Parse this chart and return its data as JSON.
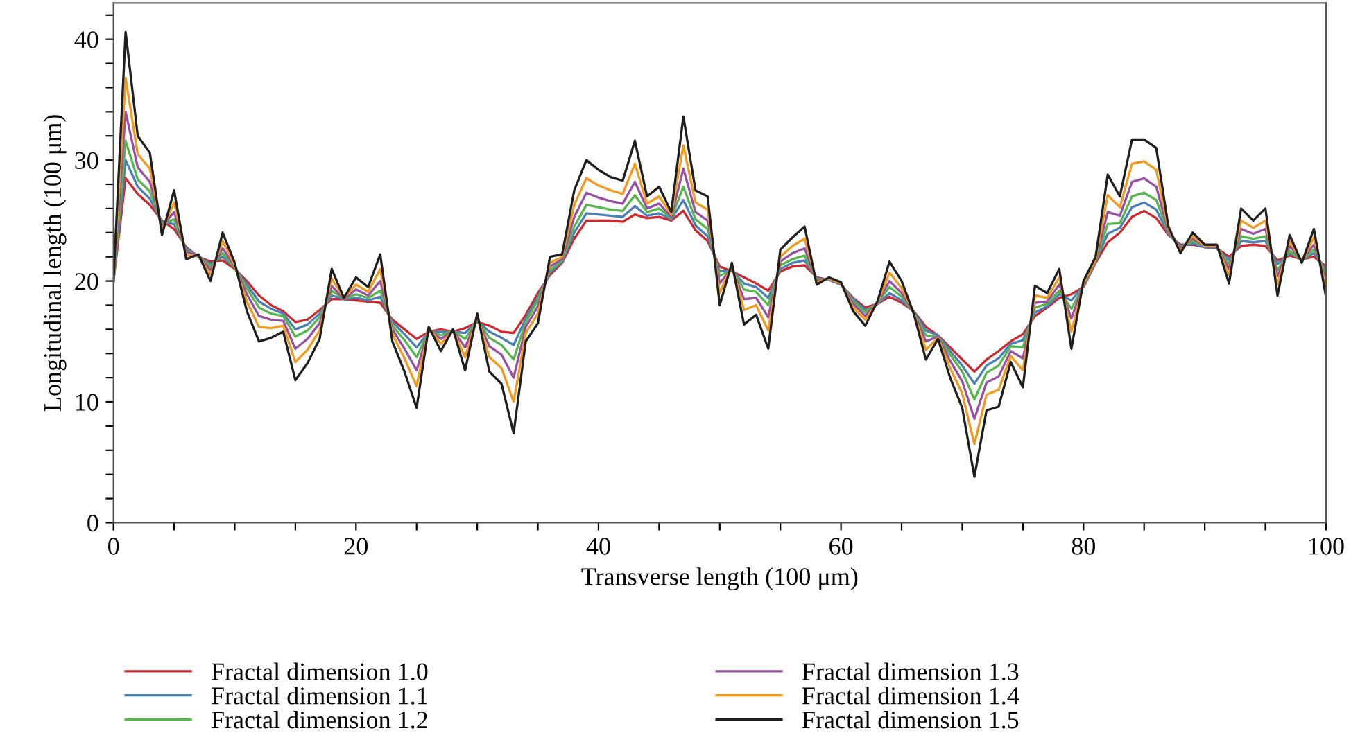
{
  "chart_data": {
    "type": "line",
    "xlabel": "Transverse length (100 μm)",
    "ylabel": "Longitudinal length (100 μm)",
    "x": [
      0,
      1,
      2,
      3,
      4,
      5,
      6,
      7,
      8,
      9,
      10,
      11,
      12,
      13,
      14,
      15,
      16,
      17,
      18,
      19,
      20,
      21,
      22,
      23,
      24,
      25,
      26,
      27,
      28,
      29,
      30,
      31,
      32,
      33,
      34,
      35,
      36,
      37,
      38,
      39,
      40,
      41,
      42,
      43,
      44,
      45,
      46,
      47,
      48,
      49,
      50,
      51,
      52,
      53,
      54,
      55,
      56,
      57,
      58,
      59,
      60,
      61,
      62,
      63,
      64,
      65,
      66,
      67,
      68,
      69,
      70,
      71,
      72,
      73,
      74,
      75,
      76,
      77,
      78,
      79,
      80,
      81,
      82,
      83,
      84,
      85,
      86,
      87,
      88,
      89,
      90,
      91,
      92,
      93,
      94,
      95,
      96,
      97,
      98,
      99,
      100
    ],
    "xlim": [
      0,
      100
    ],
    "ylim": [
      0,
      43
    ],
    "xticks": [
      0,
      {
        "value": 5,
        "label": null
      },
      {
        "value": 10,
        "label": null
      },
      {
        "value": 15,
        "label": null
      },
      20,
      {
        "value": 25,
        "label": null
      },
      {
        "value": 30,
        "label": null
      },
      {
        "value": 35,
        "label": null
      },
      40,
      {
        "value": 45,
        "label": null
      },
      {
        "value": 50,
        "label": null
      },
      {
        "value": 55,
        "label": null
      },
      60,
      {
        "value": 65,
        "label": null
      },
      {
        "value": 70,
        "label": null
      },
      {
        "value": 75,
        "label": null
      },
      80,
      {
        "value": 85,
        "label": null
      },
      {
        "value": 90,
        "label": null
      },
      {
        "value": 95,
        "label": null
      },
      100
    ],
    "yticks": [
      0,
      {
        "value": 2,
        "label": null
      },
      {
        "value": 4,
        "label": null
      },
      {
        "value": 6,
        "label": null
      },
      {
        "value": 8,
        "label": null
      },
      10,
      {
        "value": 12,
        "label": null
      },
      {
        "value": 14,
        "label": null
      },
      {
        "value": 16,
        "label": null
      },
      {
        "value": 18,
        "label": null
      },
      20,
      {
        "value": 22,
        "label": null
      },
      {
        "value": 24,
        "label": null
      },
      {
        "value": 26,
        "label": null
      },
      {
        "value": 28,
        "label": null
      },
      30,
      {
        "value": 32,
        "label": null
      },
      {
        "value": 34,
        "label": null
      },
      {
        "value": 36,
        "label": null
      },
      {
        "value": 38,
        "label": null
      },
      40,
      {
        "value": 42,
        "label": null
      }
    ],
    "grid": false,
    "legend": "bottom",
    "marker": "none",
    "line_style": "solid",
    "series": [
      {
        "name": "Fractal dimension 1.0",
        "color": "#d0282c",
        "values": [
          20,
          28.5,
          27.2,
          26.3,
          25,
          24.3,
          22.8,
          22,
          21.6,
          21.7,
          21,
          20,
          18.8,
          18,
          17.5,
          16.6,
          16.8,
          17.6,
          18.5,
          18.5,
          18.4,
          18.3,
          18.2,
          16.8,
          16,
          15.2,
          15.8,
          16,
          15.8,
          16.1,
          16.6,
          16.3,
          15.8,
          15.7,
          17.2,
          19,
          20.5,
          21.5,
          23.5,
          25,
          25,
          25,
          24.9,
          25.5,
          25.2,
          25.3,
          25,
          25.8,
          24.2,
          23.3,
          21.2,
          20.8,
          20.3,
          19.8,
          19.2,
          20.8,
          21.2,
          21.3,
          20.3,
          20.1,
          19.7,
          18.6,
          17.8,
          18.1,
          18.7,
          18.2,
          17.5,
          16.2,
          15.5,
          14.5,
          13.5,
          12.5,
          13.5,
          14.2,
          15,
          15.6,
          17.1,
          17.8,
          18.6,
          18.9,
          19.5,
          21.5,
          23.2,
          24,
          25.3,
          25.8,
          25.2,
          23.8,
          23,
          23,
          22.8,
          22.7,
          22,
          22.9,
          23,
          22.9,
          21.7,
          22.1,
          21.8,
          22,
          21.2
        ]
      },
      {
        "name": "Fractal dimension 1.1",
        "color": "#4a80b8",
        "values": [
          20,
          30.0,
          27.8,
          26.8,
          24.9,
          24.7,
          22.7,
          22.0,
          21.4,
          22.0,
          21.1,
          19.7,
          18.3,
          17.7,
          17.3,
          16.0,
          16.4,
          17.3,
          18.8,
          18.5,
          18.6,
          18.4,
          18.7,
          16.6,
          15.6,
          14.5,
          15.8,
          15.8,
          15.8,
          15.7,
          16.7,
          15.8,
          15.3,
          14.7,
          16.9,
          18.7,
          20.7,
          21.6,
          24.0,
          25.6,
          25.5,
          25.4,
          25.3,
          26.2,
          25.4,
          25.6,
          25.1,
          26.7,
          24.6,
          23.7,
          20.8,
          20.9,
          19.8,
          19.5,
          18.6,
          21.0,
          21.5,
          21.7,
          20.2,
          20.1,
          19.7,
          18.5,
          17.6,
          18.1,
          19.0,
          18.4,
          17.5,
          15.9,
          15.5,
          14.2,
          13.0,
          11.5,
          13.0,
          13.6,
          14.8,
          15.1,
          17.4,
          17.9,
          18.9,
          18.4,
          19.6,
          21.6,
          23.9,
          24.4,
          26.1,
          26.5,
          25.9,
          23.9,
          22.9,
          23.1,
          22.8,
          22.7,
          21.7,
          23.3,
          23.2,
          23.3,
          21.4,
          22.3,
          21.8,
          22.3,
          20.9
        ]
      },
      {
        "name": "Fractal dimension 1.2",
        "color": "#56b84a",
        "values": [
          20,
          31.6,
          28.4,
          27.4,
          24.7,
          25.1,
          22.5,
          22.1,
          21.2,
          22.3,
          21.1,
          19.4,
          17.8,
          17.3,
          17.1,
          15.4,
          15.9,
          17.0,
          19.2,
          18.5,
          18.9,
          18.6,
          19.2,
          16.3,
          15.1,
          13.7,
          15.9,
          15.5,
          15.9,
          15.2,
          16.8,
          15.3,
          14.7,
          13.5,
          16.6,
          18.4,
          20.9,
          21.7,
          24.5,
          26.3,
          26.1,
          25.9,
          25.8,
          27.1,
          25.7,
          26.0,
          25.2,
          27.8,
          25.1,
          24.3,
          20.4,
          21.0,
          19.3,
          19.1,
          18.0,
          21.3,
          21.8,
          22.1,
          20.1,
          20.2,
          19.8,
          18.3,
          17.4,
          18.2,
          19.5,
          18.7,
          17.4,
          15.5,
          15.4,
          13.9,
          12.5,
          10.2,
          12.4,
          13.0,
          14.6,
          14.5,
          17.8,
          18.1,
          19.2,
          17.7,
          19.6,
          21.6,
          24.7,
          24.8,
          27.0,
          27.3,
          26.7,
          24.0,
          22.8,
          23.3,
          22.9,
          22.8,
          21.4,
          23.7,
          23.5,
          23.7,
          20.9,
          22.5,
          21.7,
          22.6,
          20.6
        ]
      },
      {
        "name": "Fractal dimension 1.3",
        "color": "#9a4fa6",
        "values": [
          20,
          34.0,
          29.4,
          28.2,
          24.5,
          25.7,
          22.4,
          22.1,
          20.9,
          22.7,
          21.2,
          18.9,
          17.1,
          16.8,
          16.7,
          14.4,
          15.2,
          16.5,
          19.6,
          18.5,
          19.3,
          18.8,
          20.0,
          16.0,
          14.4,
          12.6,
          16.0,
          15.2,
          15.9,
          14.5,
          16.9,
          14.6,
          13.9,
          12.0,
          16.2,
          17.9,
          21.2,
          21.8,
          25.3,
          27.3,
          26.9,
          26.6,
          26.4,
          28.2,
          26.0,
          26.4,
          25.3,
          29.3,
          25.7,
          25.0,
          19.8,
          21.1,
          18.5,
          18.6,
          17.0,
          21.6,
          22.3,
          22.7,
          20.0,
          20.2,
          19.8,
          18.1,
          17.1,
          18.2,
          20.0,
          19.0,
          17.4,
          15.0,
          15.4,
          13.4,
          11.7,
          8.6,
          11.6,
          12.1,
          14.2,
          13.6,
          18.2,
          18.3,
          19.7,
          16.9,
          19.7,
          21.7,
          25.7,
          25.4,
          28.2,
          28.5,
          27.8,
          24.1,
          22.7,
          23.5,
          22.9,
          22.8,
          21.0,
          24.3,
          23.9,
          24.3,
          20.4,
          22.9,
          21.7,
          23.0,
          20.1
        ]
      },
      {
        "name": "Fractal dimension 1.4",
        "color": "#f39a1e",
        "values": [
          20,
          36.8,
          30.5,
          29.3,
          24.2,
          26.5,
          22.1,
          22.1,
          20.5,
          23.3,
          21.3,
          18.3,
          16.2,
          16.1,
          16.3,
          13.3,
          14.3,
          15.9,
          20.2,
          18.6,
          19.7,
          19.1,
          21.0,
          15.6,
          13.6,
          11.3,
          16.1,
          14.8,
          15.9,
          13.7,
          17.1,
          13.7,
          12.8,
          10.0,
          15.7,
          17.3,
          21.5,
          22.0,
          26.3,
          28.5,
          27.9,
          27.5,
          27.2,
          29.7,
          26.4,
          27.0,
          25.5,
          31.2,
          26.5,
          25.9,
          19.0,
          21.3,
          17.6,
          18.0,
          15.9,
          22.0,
          22.9,
          23.5,
          19.9,
          20.2,
          19.8,
          17.8,
          16.8,
          18.2,
          20.7,
          19.4,
          17.4,
          14.3,
          15.3,
          12.8,
          10.7,
          6.5,
          10.6,
          11.0,
          13.8,
          12.6,
          18.8,
          18.6,
          20.3,
          15.8,
          19.8,
          21.8,
          27.1,
          26.1,
          29.7,
          29.9,
          29.2,
          24.3,
          22.5,
          23.7,
          22.9,
          22.9,
          20.5,
          25.0,
          24.4,
          25.0,
          19.7,
          23.3,
          21.6,
          23.6,
          19.5
        ]
      },
      {
        "name": "Fractal dimension 1.5",
        "color": "#1f1f1f",
        "values": [
          20,
          40.6,
          32,
          30.6,
          23.8,
          27.5,
          21.8,
          22.2,
          20,
          24,
          21.5,
          17.5,
          15,
          15.3,
          15.8,
          11.8,
          13.2,
          15.2,
          21,
          18.6,
          20.3,
          19.5,
          22.2,
          15,
          12.5,
          9.5,
          16.2,
          14.2,
          16,
          12.6,
          17.3,
          12.5,
          11.5,
          7.4,
          15,
          16.5,
          22,
          22.2,
          27.5,
          30,
          29.2,
          28.6,
          28.3,
          31.6,
          27,
          27.8,
          25.7,
          33.6,
          27.5,
          27,
          18,
          21.5,
          16.4,
          17.2,
          14.4,
          22.6,
          23.6,
          24.5,
          19.7,
          20.3,
          19.9,
          17.5,
          16.3,
          18.3,
          21.6,
          20,
          17.3,
          13.5,
          15.2,
          12,
          9.5,
          3.8,
          9.3,
          9.6,
          13.3,
          11.2,
          19.6,
          19,
          21,
          14.4,
          20,
          22,
          28.8,
          27,
          31.7,
          31.7,
          31,
          24.5,
          22.3,
          24,
          23,
          23,
          19.8,
          26,
          25,
          26,
          18.8,
          23.8,
          21.5,
          24.3,
          18.7
        ]
      }
    ]
  }
}
